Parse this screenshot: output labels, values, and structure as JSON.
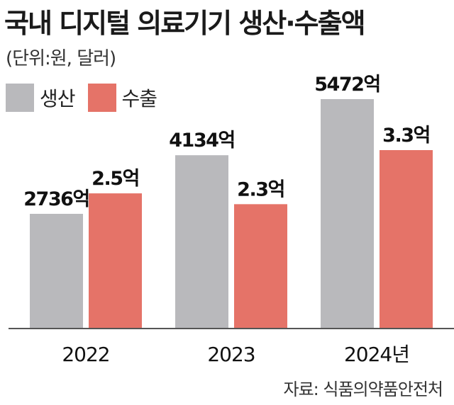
{
  "title": "국내 디지털 의료기기 생산·수출액",
  "unit": "(단위:원, 달러)",
  "source": "자료: 식품의약품안전처",
  "colors": {
    "production": "#b9b9bc",
    "export": "#e57368",
    "axis": "#555555"
  },
  "chart_data": {
    "type": "bar",
    "title": "국내 디지털 의료기기 생산·수출액",
    "categories": [
      "2022",
      "2023",
      "2024년"
    ],
    "series": [
      {
        "name": "생산",
        "values": [
          2736,
          4134,
          5472
        ],
        "labels": [
          "2736억",
          "4134억",
          "5472억"
        ],
        "unit": "억원"
      },
      {
        "name": "수출",
        "values": [
          2.5,
          2.3,
          3.3
        ],
        "labels": [
          "2.5억",
          "2.3억",
          "3.3억"
        ],
        "unit": "억달러"
      }
    ],
    "legend": "top-left",
    "grid": false
  }
}
